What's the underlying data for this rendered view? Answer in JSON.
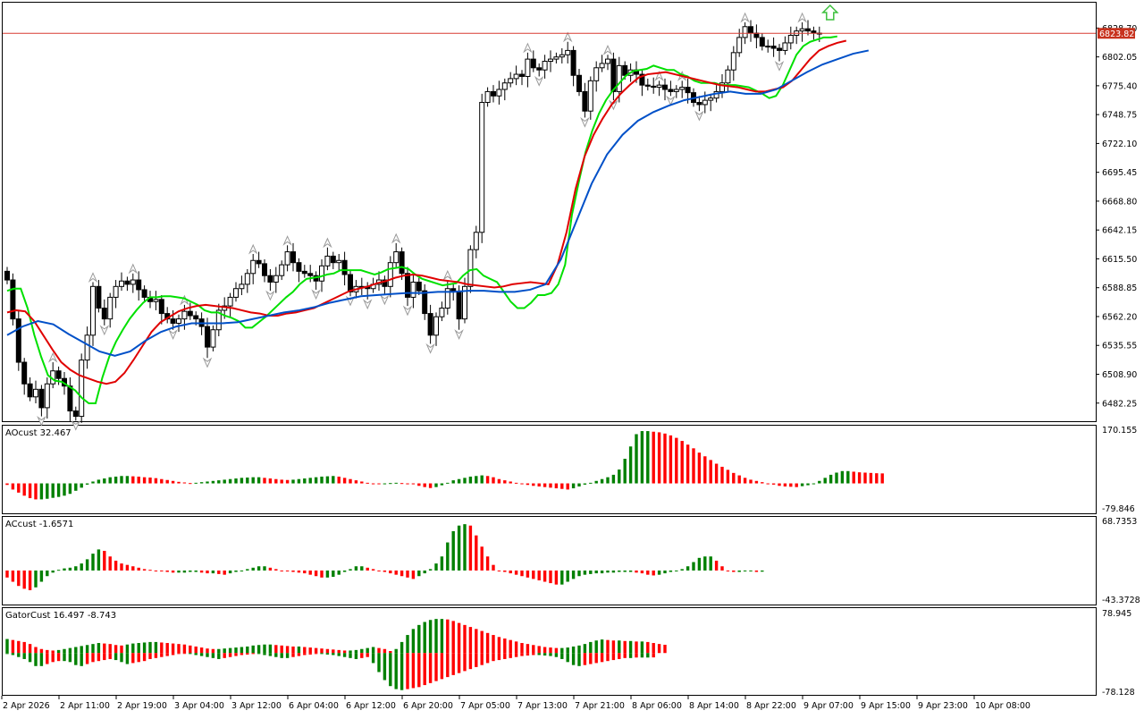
{
  "chart_data": [
    {
      "type": "candlestick",
      "pane": "price",
      "ylim": [
        6468,
        6848
      ],
      "yticks": [
        6828.7,
        6802.05,
        6775.4,
        6748.75,
        6722.1,
        6695.45,
        6668.8,
        6642.15,
        6615.5,
        6588.85,
        6562.2,
        6535.55,
        6508.9,
        6482.25
      ],
      "current_price": 6823.82,
      "current_price_label": "6823.82",
      "colors": {
        "current_price_line": "#d83b32",
        "current_price_tag": "#c8321e",
        "candle": "#000000",
        "fractal": "#9a9a9a",
        "signal_arrow": "#3cc03c"
      },
      "series": [
        {
          "name": "Price",
          "close": [
            6596,
            6560,
            6520,
            6500,
            6488,
            6495,
            6478,
            6500,
            6512,
            6505,
            6498,
            6475,
            6470,
            6522,
            6545,
            6590,
            6570,
            6560,
            6580,
            6590,
            6595,
            6592,
            6596,
            6587,
            6580,
            6576,
            6578,
            6565,
            6560,
            6556,
            6560,
            6567,
            6563,
            6560,
            6553,
            6534,
            6550,
            6568,
            6572,
            6580,
            6588,
            6592,
            6602,
            6614,
            6611,
            6600,
            6594,
            6600,
            6610,
            6622,
            6612,
            6604,
            6602,
            6600,
            6595,
            6609,
            6618,
            6612,
            6614,
            6601,
            6585,
            6590,
            6590,
            6588,
            6592,
            6596,
            6590,
            6612,
            6622,
            6602,
            6580,
            6594,
            6586,
            6565,
            6545,
            6562,
            6570,
            6588,
            6585,
            6560,
            6590,
            6624,
            6640,
            6760,
            6770,
            6766,
            6772,
            6778,
            6782,
            6786,
            6784,
            6800,
            6792,
            6790,
            6798,
            6800,
            6802,
            6804,
            6808,
            6785,
            6770,
            6752,
            6780,
            6792,
            6796,
            6800,
            6770,
            6794,
            6785,
            6790,
            6786,
            6776,
            6775,
            6774,
            6776,
            6772,
            6770,
            6772,
            6774,
            6769,
            6760,
            6758,
            6762,
            6764,
            6770,
            6778,
            6790,
            6806,
            6820,
            6830,
            6824,
            6820,
            6812,
            6812,
            6810,
            6808,
            6815,
            6822,
            6826,
            6828,
            6826,
            6824,
            6823.82
          ]
        }
      ],
      "overlays": [
        {
          "name": "Alligator Lips",
          "color": "#00e000",
          "values": [
            6586,
            6588,
            6588,
            6570,
            6545,
            6525,
            6508,
            6503,
            6502,
            6498,
            6494,
            6487,
            6482,
            6482,
            6506,
            6525,
            6539,
            6550,
            6560,
            6568,
            6575,
            6580,
            6580,
            6581,
            6581,
            6580,
            6579,
            6576,
            6573,
            6568,
            6566,
            6566,
            6563,
            6561,
            6558,
            6552,
            6552,
            6557,
            6562,
            6568,
            6574,
            6580,
            6585,
            6592,
            6597,
            6598,
            6599,
            6601,
            6602,
            6605,
            6605,
            6605,
            6605,
            6603,
            6601,
            6603,
            6606,
            6607,
            6608,
            6606,
            6601,
            6597,
            6595,
            6593,
            6591,
            6592,
            6593,
            6600,
            6605,
            6606,
            6600,
            6597,
            6594,
            6585,
            6576,
            6570,
            6570,
            6575,
            6582,
            6582,
            6584,
            6592,
            6610,
            6656,
            6686,
            6714,
            6734,
            6750,
            6762,
            6771,
            6778,
            6785,
            6789,
            6790,
            6791,
            6794,
            6792,
            6790,
            6790,
            6786,
            6784,
            6780,
            6778,
            6778,
            6778,
            6776,
            6776,
            6776,
            6775,
            6774,
            6771,
            6768,
            6764,
            6766,
            6776,
            6790,
            6804,
            6812,
            6816,
            6818,
            6820,
            6820,
            6821
          ]
        },
        {
          "name": "Alligator Teeth",
          "color": "#e00000",
          "values": [
            6566,
            6568,
            6567,
            6558,
            6545,
            6532,
            6520,
            6513,
            6508,
            6505,
            6502,
            6500,
            6502,
            6510,
            6522,
            6535,
            6548,
            6557,
            6562,
            6567,
            6570,
            6572,
            6573,
            6572,
            6571,
            6570,
            6568,
            6566,
            6565,
            6563,
            6563,
            6565,
            6566,
            6568,
            6570,
            6574,
            6578,
            6582,
            6586,
            6588,
            6590,
            6593,
            6595,
            6598,
            6600,
            6601,
            6600,
            6598,
            6596,
            6595,
            6594,
            6592,
            6591,
            6590,
            6589,
            6590,
            6592,
            6593,
            6594,
            6593,
            6592,
            6610,
            6640,
            6680,
            6710,
            6730,
            6745,
            6758,
            6768,
            6776,
            6783,
            6786,
            6787,
            6788,
            6786,
            6784,
            6782,
            6780,
            6778,
            6776,
            6775,
            6774,
            6772,
            6770,
            6770,
            6772,
            6774,
            6780,
            6790,
            6800,
            6808,
            6812,
            6815,
            6817
          ]
        },
        {
          "name": "Alligator Jaw",
          "color": "#0050c8",
          "values": [
            6545,
            6553,
            6558,
            6555,
            6546,
            6538,
            6530,
            6526,
            6530,
            6540,
            6548,
            6553,
            6556,
            6556,
            6556,
            6557,
            6560,
            6563,
            6566,
            6568,
            6571,
            6575,
            6578,
            6581,
            6582,
            6583,
            6584,
            6584,
            6585,
            6585,
            6586,
            6586,
            6585,
            6585,
            6587,
            6592,
            6615,
            6650,
            6685,
            6712,
            6730,
            6743,
            6751,
            6757,
            6762,
            6765,
            6768,
            6770,
            6768,
            6768,
            6772,
            6780,
            6788,
            6795,
            6800,
            6805,
            6808
          ]
        }
      ]
    },
    {
      "type": "histogram",
      "pane": "AOcust",
      "label": "AOcust 32.467",
      "ylim": [
        -79.846,
        170.155
      ],
      "yticks_labels": [
        "170.155",
        "-79.846"
      ],
      "colors": {
        "up": "#008000",
        "down": "#ff0000"
      },
      "values": [
        -5,
        -20,
        -30,
        -40,
        -48,
        -52,
        -52,
        -50,
        -47,
        -44,
        -40,
        -34,
        -24,
        -14,
        -4,
        6,
        12,
        16,
        20,
        22,
        24,
        24,
        23,
        22,
        20,
        19,
        17,
        14,
        11,
        8,
        5,
        3,
        1,
        2,
        4,
        6,
        8,
        10,
        12,
        14,
        16,
        18,
        19,
        20,
        20,
        18,
        16,
        14,
        12,
        11,
        12,
        14,
        16,
        18,
        20,
        22,
        23,
        24,
        22,
        18,
        14,
        10,
        6,
        2,
        0,
        -1,
        0,
        1,
        2,
        1,
        0,
        -3,
        -8,
        -12,
        -15,
        -12,
        -6,
        2,
        10,
        14,
        18,
        22,
        24,
        26,
        24,
        20,
        14,
        10,
        6,
        2,
        -2,
        -5,
        -8,
        -10,
        -12,
        -14,
        -16,
        -18,
        -20,
        -16,
        -10,
        -4,
        2,
        8,
        14,
        20,
        28,
        45,
        80,
        120,
        160,
        170,
        170,
        168,
        166,
        162,
        156,
        148,
        138,
        126,
        114,
        100,
        88,
        76,
        64,
        54,
        44,
        34,
        26,
        18,
        12,
        8,
        4,
        0,
        -4,
        -8,
        -10,
        -11,
        -12,
        -9,
        -6,
        0,
        8,
        18,
        28,
        35,
        40,
        40,
        38,
        36,
        35,
        34,
        33,
        32.467
      ]
    },
    {
      "type": "histogram",
      "pane": "ACcust",
      "label": "ACcust -1.6571",
      "ylim": [
        -43.3728,
        68.7353
      ],
      "yticks_labels": [
        "68.7353",
        "-43.3728"
      ],
      "colors": {
        "up": "#008000",
        "down": "#ff0000"
      },
      "values": [
        -10,
        -16,
        -22,
        -26,
        -28,
        -24,
        -16,
        -8,
        -3,
        1,
        3,
        4,
        6,
        10,
        16,
        24,
        30,
        28,
        20,
        14,
        10,
        8,
        6,
        4,
        2,
        1,
        0,
        -1,
        -2,
        -3,
        -3,
        -3,
        -2,
        -2,
        -3,
        -4,
        -4,
        -5,
        -6,
        -4,
        -2,
        0,
        2,
        4,
        6,
        6,
        4,
        2,
        0,
        -1,
        -2,
        -3,
        -4,
        -6,
        -8,
        -10,
        -10,
        -9,
        -6,
        -2,
        2,
        6,
        6,
        4,
        2,
        0,
        -2,
        -4,
        -6,
        -8,
        -10,
        -12,
        -8,
        -4,
        2,
        10,
        20,
        40,
        56,
        64,
        66,
        64,
        50,
        34,
        20,
        8,
        0,
        -2,
        -4,
        -6,
        -8,
        -10,
        -12,
        -14,
        -16,
        -18,
        -20,
        -20,
        -16,
        -12,
        -8,
        -6,
        -5,
        -4,
        -4,
        -3,
        -3,
        -2,
        -2,
        -2,
        -3,
        -4,
        -6,
        -7,
        -6,
        -4,
        -2,
        0,
        2,
        6,
        12,
        18,
        20,
        20,
        14,
        6,
        0,
        -2,
        -2,
        -1,
        -1,
        -2,
        -1.6571
      ]
    },
    {
      "type": "histogram",
      "pane": "GatorCust",
      "label": "GatorCust 16.497 -8.743",
      "ylim": [
        -78.128,
        78.945
      ],
      "yticks_labels": [
        "78.945",
        "-78.128"
      ],
      "colors": {
        "up": "#008000",
        "down": "#ff0000"
      },
      "upper_values": [
        28,
        26,
        24,
        22,
        18,
        12,
        8,
        6,
        5,
        6,
        8,
        10,
        12,
        14,
        16,
        18,
        20,
        19,
        18,
        16,
        15,
        17,
        19,
        20,
        21,
        22,
        22,
        21,
        20,
        19,
        18,
        17,
        15,
        13,
        11,
        9,
        8,
        8,
        9,
        10,
        11,
        12,
        13,
        15,
        16,
        17,
        17,
        16,
        15,
        14,
        13,
        13,
        12,
        11,
        10,
        9,
        8,
        7,
        6,
        5,
        5,
        6,
        8,
        10,
        12,
        10,
        8,
        4,
        8,
        22,
        36,
        48,
        56,
        62,
        66,
        68,
        68,
        67,
        64,
        60,
        56,
        52,
        48,
        44,
        40,
        36,
        32,
        29,
        26,
        23,
        20,
        18,
        16,
        14,
        12,
        11,
        10,
        10,
        11,
        13,
        15,
        18,
        22,
        25,
        27,
        26,
        25,
        25,
        24,
        24,
        23,
        23,
        22,
        20,
        18,
        16.497
      ],
      "lower_values": [
        -2,
        -4,
        -8,
        -12,
        -18,
        -26,
        -26,
        -22,
        -18,
        -16,
        -16,
        -18,
        -24,
        -26,
        -22,
        -18,
        -16,
        -14,
        -12,
        -14,
        -18,
        -22,
        -20,
        -18,
        -16,
        -12,
        -10,
        -8,
        -6,
        -4,
        -2,
        -1,
        -2,
        -4,
        -6,
        -8,
        -10,
        -12,
        -10,
        -8,
        -6,
        -4,
        -3,
        -2,
        -2,
        -4,
        -6,
        -8,
        -10,
        -10,
        -8,
        -6,
        -4,
        -3,
        -2,
        -2,
        -3,
        -4,
        -6,
        -8,
        -10,
        -12,
        -10,
        -8,
        -20,
        -38,
        -54,
        -66,
        -72,
        -74,
        -72,
        -70,
        -68,
        -64,
        -60,
        -56,
        -52,
        -48,
        -44,
        -40,
        -36,
        -32,
        -28,
        -24,
        -20,
        -16,
        -14,
        -12,
        -10,
        -8,
        -6,
        -5,
        -4,
        -4,
        -5,
        -6,
        -8,
        -12,
        -18,
        -24,
        -26,
        -24,
        -22,
        -20,
        -18,
        -16,
        -14,
        -12,
        -10,
        -10,
        -9,
        -9,
        -9,
        -8.743
      ]
    }
  ],
  "x_axis": {
    "labels": [
      "2 Apr 2026",
      "2 Apr 11:00",
      "2 Apr 19:00",
      "3 Apr 04:00",
      "3 Apr 12:00",
      "6 Apr 04:00",
      "6 Apr 12:00",
      "6 Apr 20:00",
      "7 Apr 05:00",
      "7 Apr 13:00",
      "7 Apr 21:00",
      "8 Apr 06:00",
      "8 Apr 14:00",
      "8 Apr 22:00",
      "9 Apr 07:00",
      "9 Apr 15:00",
      "9 Apr 23:00",
      "10 Apr 08:00"
    ]
  }
}
